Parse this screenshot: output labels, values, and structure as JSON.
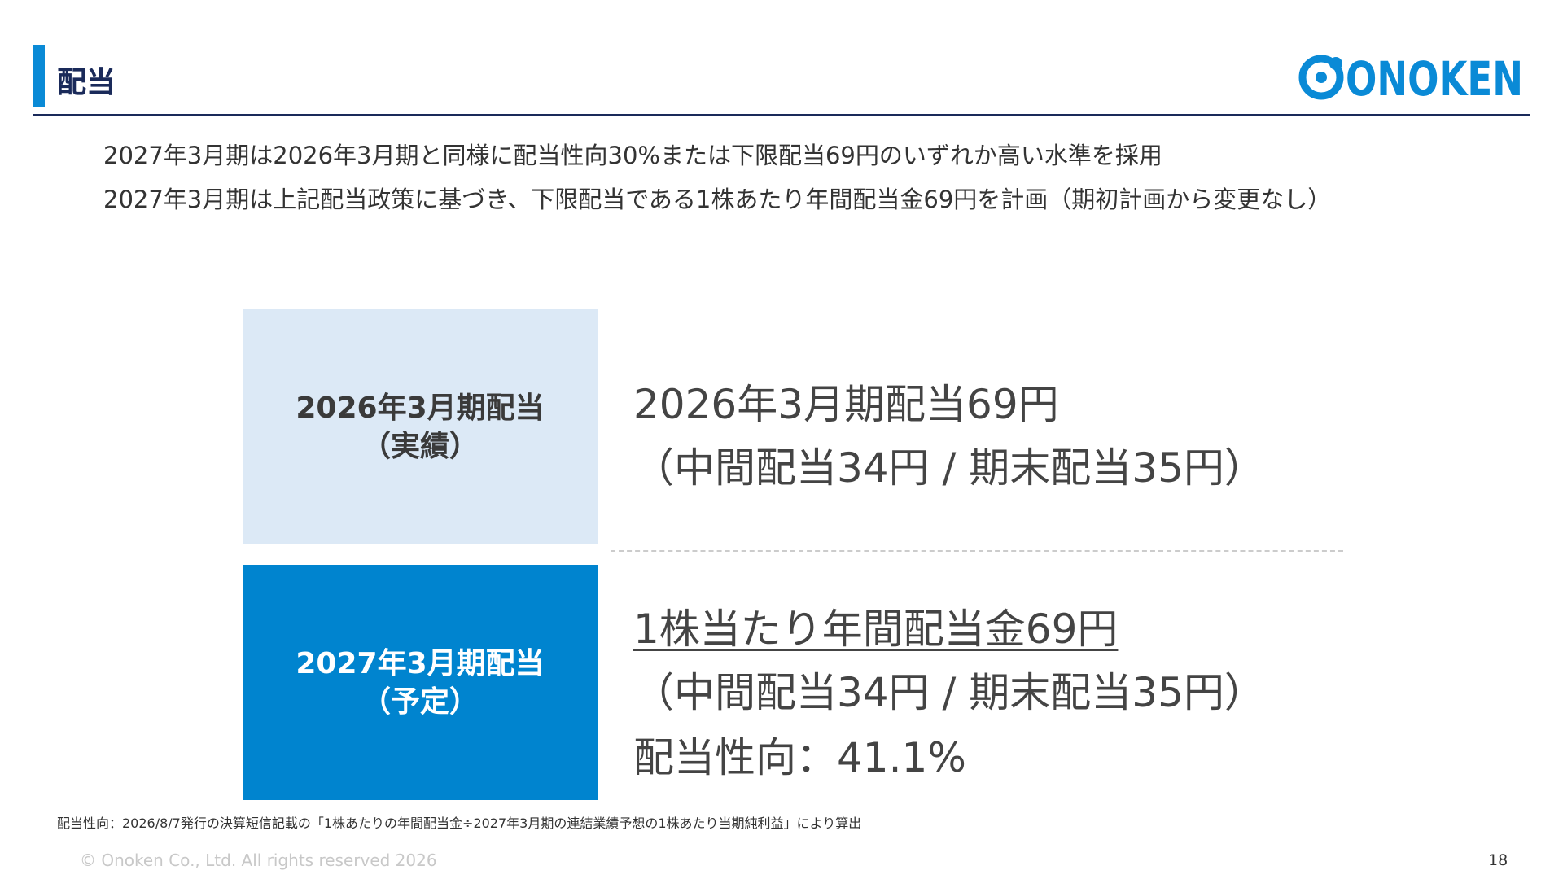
{
  "header": {
    "title": "配当",
    "logo": "ONOKEN"
  },
  "bullets": [
    "2027年3月期は2026年3月期と同様に配当性向30%または下限配当69円のいずれか高い水準を採用",
    "2027年3月期は上記配当政策に基づき、下限配当である1株あたり年間配当金69円を計画（期初計画から変更なし）"
  ],
  "rows": [
    {
      "label": [
        "2026年3月期配当",
        "（実績）"
      ],
      "lines": [
        "2026年3月期配当69円",
        "（中間配当34円 / 期末配当35円）"
      ]
    },
    {
      "label": [
        "2027年3月期配当",
        "（予定）"
      ],
      "lines": [
        "1株当たり年間配当金69円",
        "（中間配当34円 / 期末配当35円）",
        "配当性向：41.1%"
      ]
    }
  ],
  "footnote": "配当性向：2026/8/7発行の決算短信記載の「1株あたりの年間配当金÷2027年3月期の連結業績予想の1株あたり当期純利益」により算出",
  "footer": {
    "copyright": "© Onoken Co., Ltd. All rights reserved 2026",
    "page": "18"
  }
}
